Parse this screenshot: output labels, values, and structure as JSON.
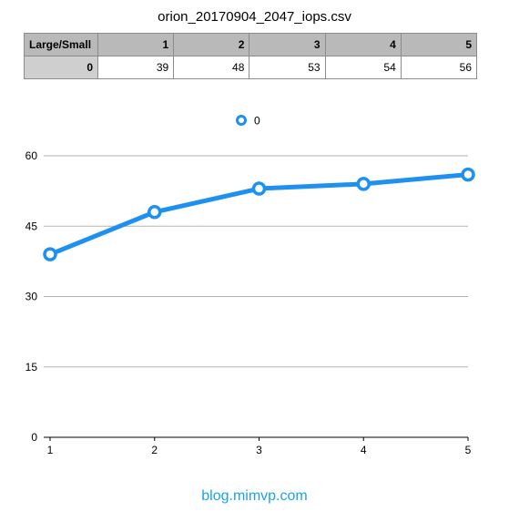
{
  "title": "orion_20170904_2047_iops.csv",
  "table": {
    "corner": "Large/Small",
    "columns": [
      "1",
      "2",
      "3",
      "4",
      "5"
    ],
    "rows": [
      {
        "label": "0",
        "values": [
          "39",
          "48",
          "53",
          "54",
          "56"
        ]
      }
    ]
  },
  "chart_data": {
    "type": "line",
    "title": "orion_20170904_2047_iops.csv",
    "xlabel": "",
    "ylabel": "",
    "x": [
      1,
      2,
      3,
      4,
      5
    ],
    "series": [
      {
        "name": "0",
        "values": [
          39,
          48,
          53,
          54,
          56
        ],
        "color": "#1e90f0"
      }
    ],
    "ylim": [
      0,
      60
    ],
    "yticks": [
      0,
      15,
      30,
      45,
      60
    ],
    "xticks": [
      1,
      2,
      3,
      4,
      5
    ],
    "grid": true,
    "legend": "top-center"
  },
  "footer": "blog.mimvp.com"
}
